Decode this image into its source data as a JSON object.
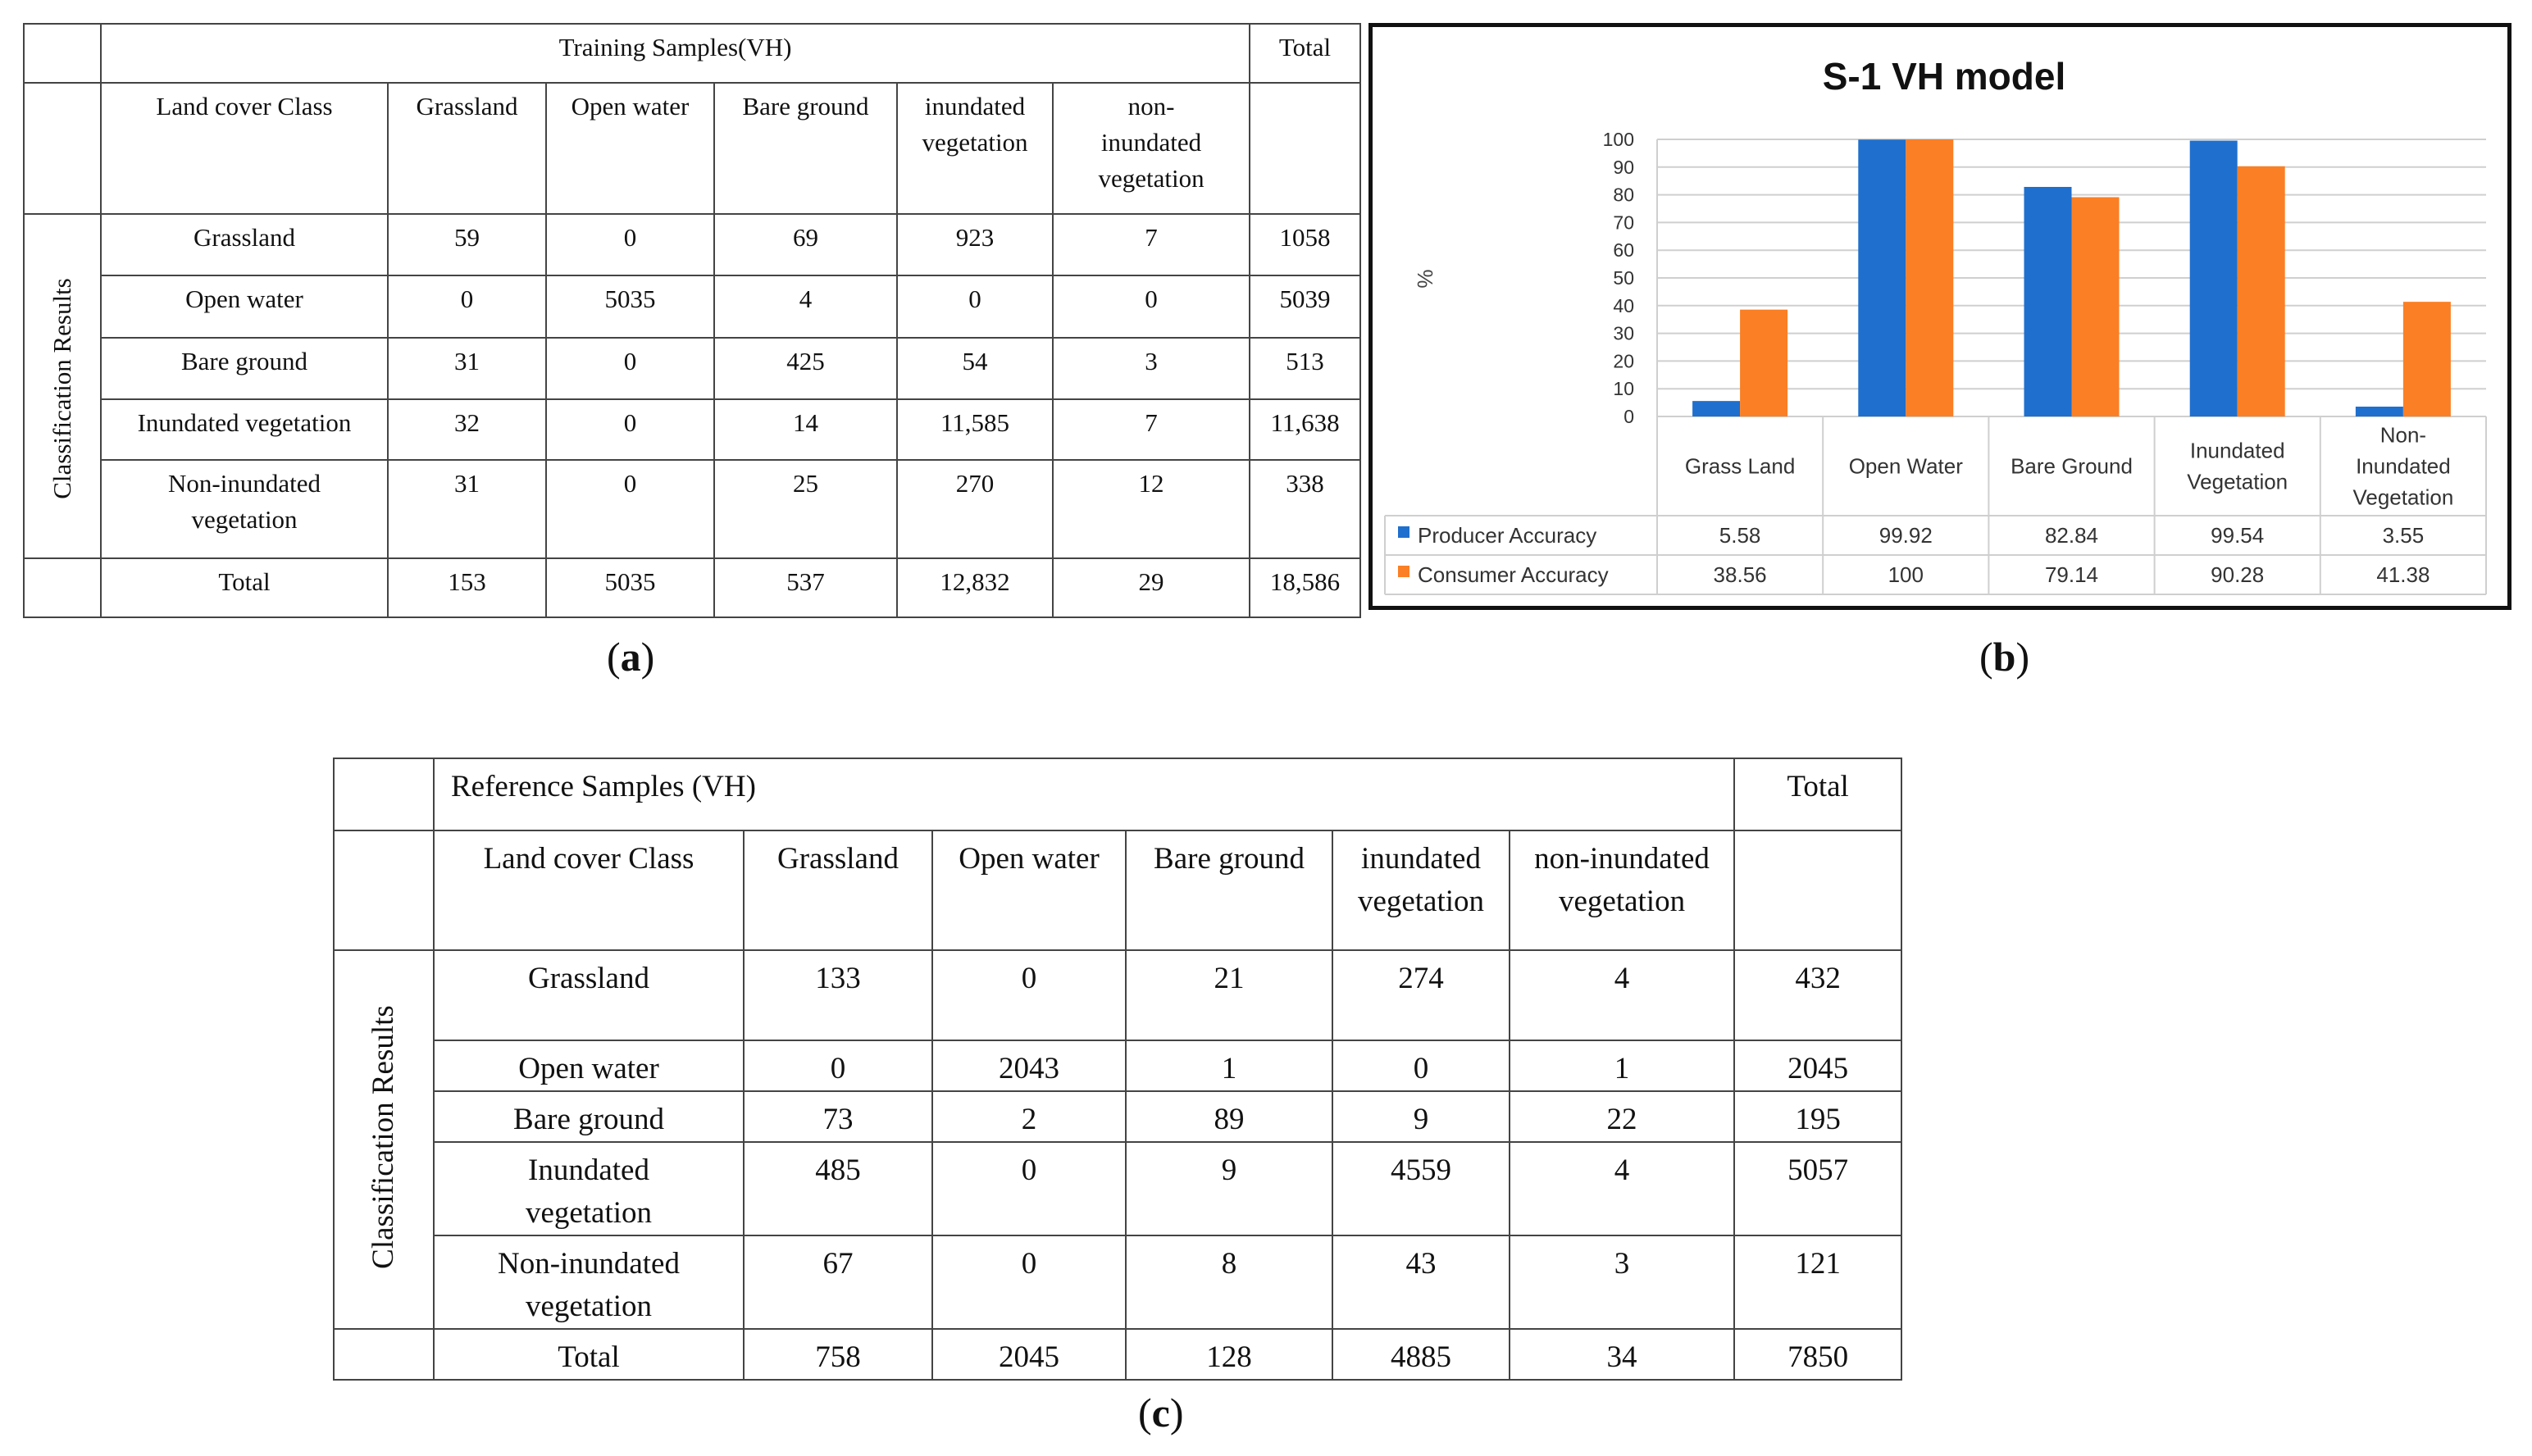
{
  "captions": {
    "a": "a",
    "b": "b",
    "c": "c"
  },
  "table_a": {
    "group_header": "Training  Samples(VH)",
    "total_header": "Total",
    "row_group_label": "Classification Results",
    "class_header": "Land cover Class",
    "columns": [
      "Grassland",
      "Open water",
      "Bare ground",
      "inundated vegetation",
      "non-inundated vegetation"
    ],
    "rows": [
      {
        "label": "Grassland",
        "cells": [
          "59",
          "0",
          "69",
          "923",
          "7"
        ],
        "total": "1058"
      },
      {
        "label": "Open water",
        "cells": [
          "0",
          "5035",
          "4",
          "0",
          "0"
        ],
        "total": "5039"
      },
      {
        "label": "Bare ground",
        "cells": [
          "31",
          "0",
          "425",
          "54",
          "3"
        ],
        "total": "513"
      },
      {
        "label": "Inundated vegetation",
        "cells": [
          "32",
          "0",
          "14",
          "11,585",
          "7"
        ],
        "total": "11,638"
      },
      {
        "label": "Non-inundated vegetation",
        "cells": [
          "31",
          "0",
          "25",
          "270",
          "12"
        ],
        "total": "338"
      }
    ],
    "total_row": {
      "label": "Total",
      "cells": [
        "153",
        "5035",
        "537",
        "12,832",
        "29"
      ],
      "total": "18,586"
    }
  },
  "table_c": {
    "group_header": "Reference Samples (VH)",
    "total_header": "Total",
    "row_group_label": "Classification Results",
    "class_header": "Land cover Class",
    "columns": [
      "Grassland",
      "Open water",
      "Bare ground",
      "inundated vegetation",
      "non-inundated vegetation"
    ],
    "rows": [
      {
        "label": "Grassland",
        "cells": [
          "133",
          "0",
          "21",
          "274",
          "4"
        ],
        "total": "432"
      },
      {
        "label": "Open water",
        "cells": [
          "0",
          "2043",
          "1",
          "0",
          "1"
        ],
        "total": "2045"
      },
      {
        "label": "Bare ground",
        "cells": [
          "73",
          "2",
          "89",
          "9",
          "22"
        ],
        "total": "195"
      },
      {
        "label": "Inundated vegetation",
        "cells": [
          "485",
          "0",
          "9",
          "4559",
          "4"
        ],
        "total": "5057"
      },
      {
        "label": "Non-inundated vegetation",
        "cells": [
          "67",
          "0",
          "8",
          "43",
          "3"
        ],
        "total": "121"
      }
    ],
    "total_row": {
      "label": "Total",
      "cells": [
        "758",
        "2045",
        "128",
        "4885",
        "34"
      ],
      "total": "7850"
    }
  },
  "chart_data": {
    "type": "bar",
    "title": "S-1 VH model",
    "ylabel": "%",
    "xlabel": "",
    "ylim": [
      0,
      100
    ],
    "yticks": [
      0,
      10,
      20,
      30,
      40,
      50,
      60,
      70,
      80,
      90,
      100
    ],
    "grid": true,
    "legend": "bottom-left (data table)",
    "categories": [
      "Grass Land",
      "Open Water",
      "Bare Ground",
      "Inundated Vegetation",
      "Non-Inundated Vegetation"
    ],
    "series": [
      {
        "name": "Producer Accuracy",
        "color": "#1f6fce",
        "values": [
          5.58,
          99.92,
          82.84,
          99.54,
          3.55
        ]
      },
      {
        "name": "Consumer Accuracy",
        "color": "#fb7f24",
        "values": [
          38.56,
          100,
          79.14,
          90.28,
          41.38
        ]
      }
    ],
    "table_values": [
      [
        "5.58",
        "99.92",
        "82.84",
        "99.54",
        "3.55"
      ],
      [
        "38.56",
        "100",
        "79.14",
        "90.28",
        "41.38"
      ]
    ]
  }
}
